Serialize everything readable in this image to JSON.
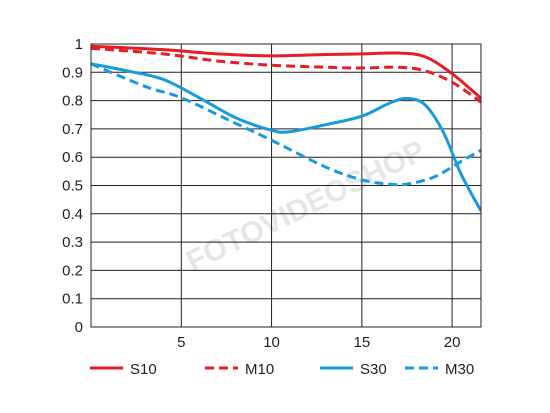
{
  "chart_data": {
    "type": "line",
    "title": "",
    "xlabel": "",
    "ylabel": "",
    "xlim": [
      0,
      21.6
    ],
    "ylim": [
      0,
      1
    ],
    "x_ticks": [
      5,
      10,
      15,
      20
    ],
    "x_tick_labels": [
      "5",
      "10",
      "15",
      "20"
    ],
    "y_ticks": [
      0,
      0.1,
      0.2,
      0.3,
      0.4,
      0.5,
      0.6,
      0.7,
      0.8,
      0.9,
      1
    ],
    "y_tick_labels": [
      "0",
      "0.1",
      "0.2",
      "0.3",
      "0.4",
      "0.5",
      "0.6",
      "0.7",
      "0.8",
      "0.9",
      "1"
    ],
    "grid": true,
    "legend_position": "bottom",
    "series": [
      {
        "name": "S10",
        "color": "#e31e24",
        "dash": "solid",
        "points": [
          [
            0,
            0.992
          ],
          [
            4,
            0.98
          ],
          [
            7,
            0.965
          ],
          [
            10,
            0.958
          ],
          [
            13,
            0.963
          ],
          [
            15,
            0.965
          ],
          [
            17,
            0.968
          ],
          [
            18.5,
            0.955
          ],
          [
            20,
            0.895
          ],
          [
            21.6,
            0.808
          ]
        ]
      },
      {
        "name": "M10",
        "color": "#e31e24",
        "dash": "dashed",
        "points": [
          [
            0,
            0.985
          ],
          [
            4,
            0.965
          ],
          [
            7,
            0.94
          ],
          [
            10,
            0.925
          ],
          [
            13,
            0.918
          ],
          [
            15,
            0.915
          ],
          [
            17,
            0.918
          ],
          [
            18.5,
            0.905
          ],
          [
            20,
            0.865
          ],
          [
            21.6,
            0.795
          ]
        ]
      },
      {
        "name": "S30",
        "color": "#1a9ad9",
        "dash": "solid",
        "points": [
          [
            0,
            0.93
          ],
          [
            2,
            0.905
          ],
          [
            4,
            0.875
          ],
          [
            6,
            0.81
          ],
          [
            8,
            0.74
          ],
          [
            10,
            0.695
          ],
          [
            11,
            0.69
          ],
          [
            13,
            0.715
          ],
          [
            15,
            0.745
          ],
          [
            16.5,
            0.79
          ],
          [
            17.5,
            0.808
          ],
          [
            18.5,
            0.785
          ],
          [
            19.5,
            0.69
          ],
          [
            20.5,
            0.54
          ],
          [
            21.6,
            0.41
          ]
        ]
      },
      {
        "name": "M30",
        "color": "#1a9ad9",
        "dash": "dashed",
        "points": [
          [
            0,
            0.93
          ],
          [
            3,
            0.85
          ],
          [
            5,
            0.81
          ],
          [
            8,
            0.72
          ],
          [
            10,
            0.66
          ],
          [
            13,
            0.565
          ],
          [
            15,
            0.52
          ],
          [
            16.5,
            0.505
          ],
          [
            17.5,
            0.505
          ],
          [
            19,
            0.53
          ],
          [
            20.5,
            0.585
          ],
          [
            21.6,
            0.625
          ]
        ]
      }
    ],
    "watermark": "FOTOVIDEOSHOP"
  }
}
